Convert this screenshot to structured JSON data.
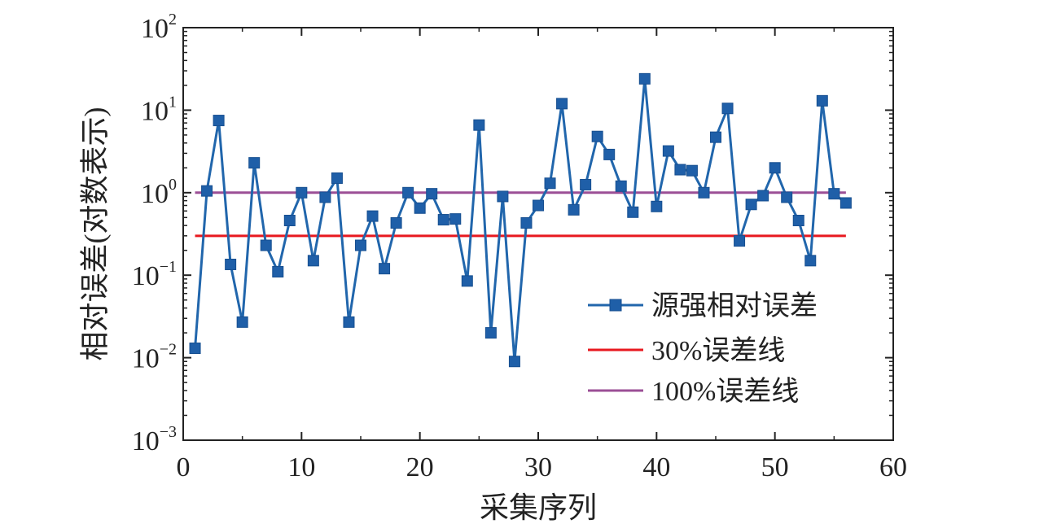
{
  "chart_data": {
    "type": "line",
    "title": "",
    "xlabel": "采集序列",
    "ylabel": "相对误差(对数表示)",
    "y_scale": "log",
    "xlim": [
      0,
      60
    ],
    "ylim": [
      0.001,
      100
    ],
    "x_ticks": [
      "0",
      "10",
      "20",
      "30",
      "40",
      "50",
      "60"
    ],
    "y_ticks": [
      {
        "base": "10",
        "exp": "−3"
      },
      {
        "base": "10",
        "exp": "−2"
      },
      {
        "base": "10",
        "exp": "−1"
      },
      {
        "base": "10",
        "exp": "0"
      },
      {
        "base": "10",
        "exp": "1"
      },
      {
        "base": "10",
        "exp": "2"
      }
    ],
    "grid": false,
    "legend_position": "lower-right",
    "series": [
      {
        "name": "源强相对误差",
        "color": "#2166ac",
        "marker": "square",
        "x": [
          1,
          2,
          3,
          4,
          5,
          6,
          7,
          8,
          9,
          10,
          11,
          12,
          13,
          14,
          15,
          16,
          17,
          18,
          19,
          20,
          21,
          22,
          23,
          24,
          25,
          26,
          27,
          28,
          29,
          30,
          31,
          32,
          33,
          34,
          35,
          36,
          37,
          38,
          39,
          40,
          41,
          42,
          43,
          44,
          45,
          46,
          47,
          48,
          49,
          50,
          51,
          52,
          53,
          54,
          55,
          56
        ],
        "y": [
          0.013,
          1.05,
          7.5,
          0.135,
          0.027,
          2.3,
          0.23,
          0.11,
          0.46,
          1.0,
          0.15,
          0.88,
          1.5,
          0.027,
          0.23,
          0.52,
          0.12,
          0.43,
          1.0,
          0.65,
          0.97,
          0.47,
          0.48,
          0.085,
          6.6,
          0.02,
          0.9,
          0.009,
          0.43,
          0.7,
          1.3,
          12.0,
          0.62,
          1.25,
          4.8,
          2.9,
          1.2,
          0.58,
          24.0,
          0.68,
          3.2,
          1.9,
          1.85,
          1.0,
          4.7,
          10.5,
          0.26,
          0.72,
          0.92,
          2.0,
          0.88,
          0.46,
          0.15,
          13.0,
          0.97,
          0.75
        ]
      },
      {
        "name": "30%误差线",
        "color": "#e8191f",
        "x": [
          1,
          56
        ],
        "y": [
          0.3,
          0.3
        ]
      },
      {
        "name": "100%误差线",
        "color": "#9b4f96",
        "x": [
          1,
          56
        ],
        "y": [
          1.0,
          1.0
        ]
      }
    ]
  }
}
